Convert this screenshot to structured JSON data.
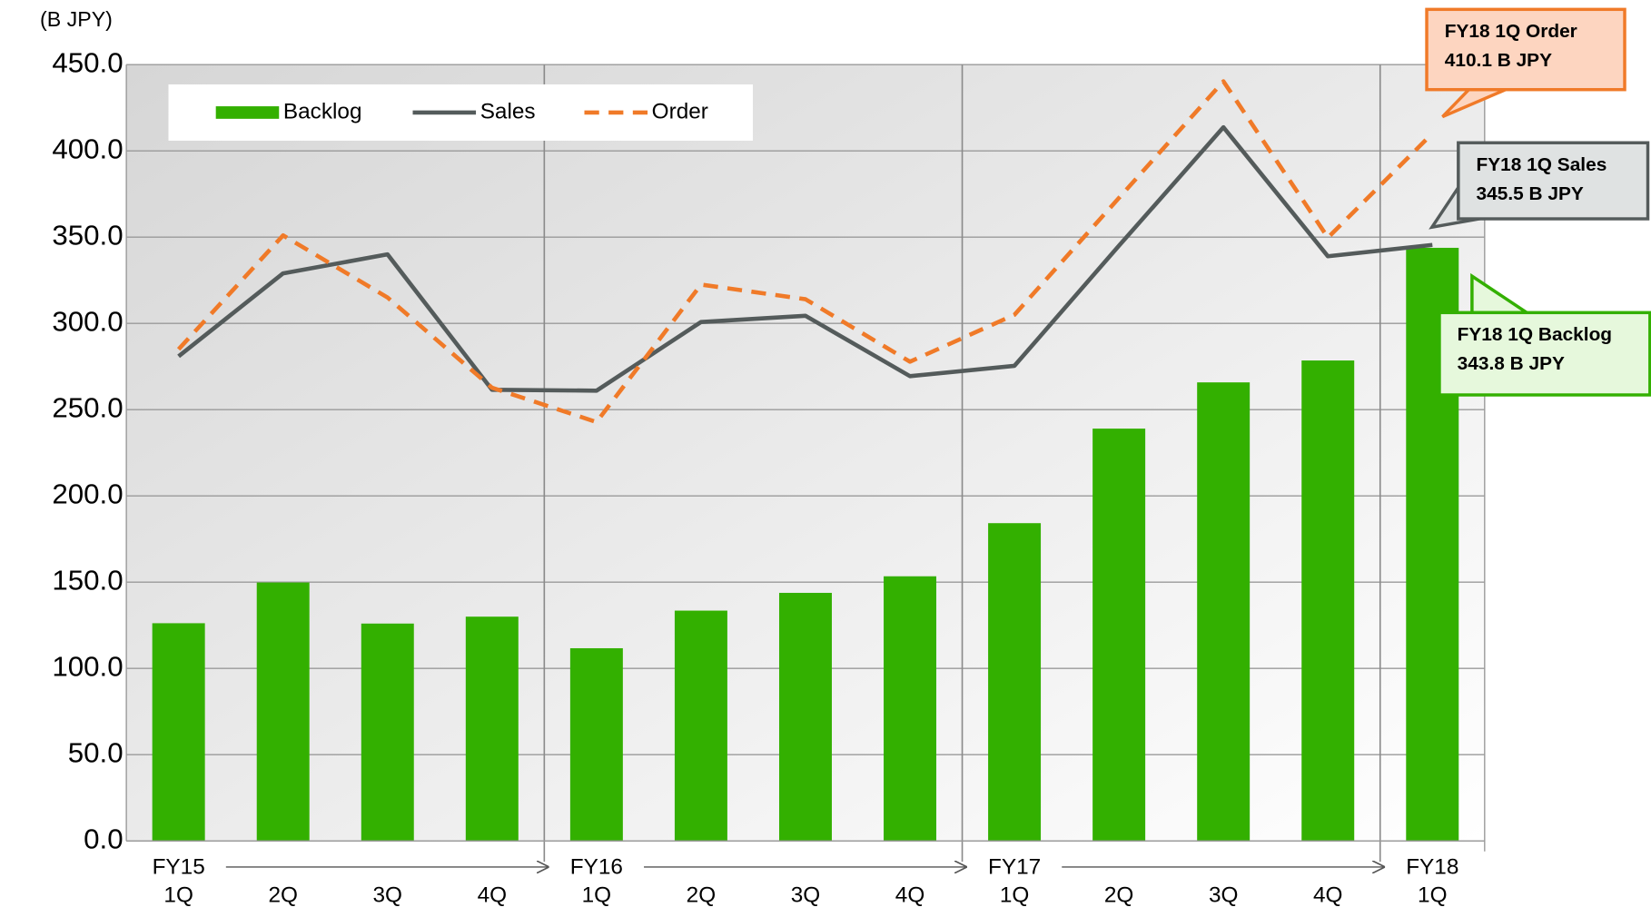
{
  "chart_data": {
    "type": "bar_line",
    "unit_label": "(B JPY)",
    "categories": [
      "1Q",
      "2Q",
      "3Q",
      "4Q",
      "1Q",
      "2Q",
      "3Q",
      "4Q",
      "1Q",
      "2Q",
      "3Q",
      "4Q",
      "1Q"
    ],
    "fiscal_years": [
      "FY15",
      "FY16",
      "FY17",
      "FY18"
    ],
    "series": [
      {
        "name": "Backlog",
        "type": "bar",
        "color": "#33b000",
        "values": [
          126.2,
          149.8,
          126.0,
          130.0,
          111.7,
          133.5,
          143.8,
          153.4,
          184.2,
          239.0,
          265.8,
          278.5,
          343.8
        ]
      },
      {
        "name": "Sales",
        "type": "line",
        "color": "#545b5b",
        "values": [
          280.9,
          329.0,
          340.0,
          261.5,
          261.0,
          300.8,
          304.4,
          269.4,
          275.4,
          345.0,
          413.7,
          338.9,
          345.5
        ]
      },
      {
        "name": "Order",
        "type": "dashed-line",
        "color": "#f07a28",
        "values": [
          285.0,
          351.0,
          315.0,
          262.7,
          242.8,
          322.5,
          314.0,
          277.8,
          305.0,
          372.7,
          440.3,
          349.7,
          410.1
        ]
      }
    ],
    "ylim": [
      0,
      450
    ],
    "yticks": [
      {
        "value": 0,
        "label": "0.0"
      },
      {
        "value": 50,
        "label": "50.0"
      },
      {
        "value": 100,
        "label": "100.0"
      },
      {
        "value": 150,
        "label": "150.0"
      },
      {
        "value": 200,
        "label": "200.0"
      },
      {
        "value": 250,
        "label": "250.0"
      },
      {
        "value": 300,
        "label": "300.0"
      },
      {
        "value": 350,
        "label": "350.0"
      },
      {
        "value": 400,
        "label": "400.0"
      },
      {
        "value": 450,
        "label": "450.0"
      }
    ],
    "grid": true,
    "legend": "top-left",
    "annotations": [
      {
        "lines": [
          "FY18 1Q Order",
          "410.1 B JPY"
        ],
        "fill": "#fdd5c0",
        "stroke": "#f07a28"
      },
      {
        "lines": [
          "FY18 1Q Sales",
          "345.5 B JPY"
        ],
        "fill": "#dfe2e2",
        "stroke": "#545b5b"
      },
      {
        "lines": [
          "FY18 1Q Backlog",
          "343.8 B JPY"
        ],
        "fill": "#e6f8dc",
        "stroke": "#33b000"
      }
    ]
  }
}
